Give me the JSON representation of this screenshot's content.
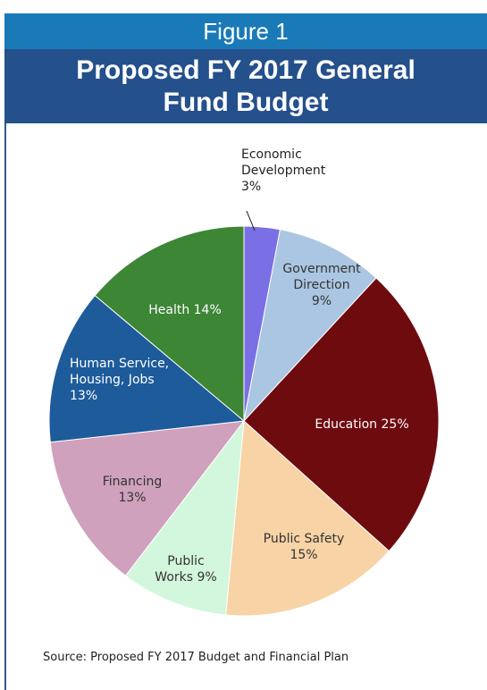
{
  "header": {
    "figure_label": "Figure 1",
    "title_line1": "Proposed FY 2017 General",
    "title_line2": "Fund Budget"
  },
  "chart_data": {
    "type": "pie",
    "title": "Proposed FY 2017 General Fund Budget",
    "slices": [
      {
        "label_lines": [
          "Economic",
          "Development",
          "3%"
        ],
        "value": 3,
        "color": "#7b6fe6"
      },
      {
        "label_lines": [
          "Government",
          "Direction",
          "9%"
        ],
        "value": 9,
        "color": "#abc6e2"
      },
      {
        "label_lines": [
          "Education 25%"
        ],
        "value": 25,
        "color": "#6e0b0f"
      },
      {
        "label_lines": [
          "Public Safety",
          "15%"
        ],
        "value": 15,
        "color": "#f7d3a6"
      },
      {
        "label_lines": [
          "Public",
          "Works 9%"
        ],
        "value": 9,
        "color": "#d2f7dc"
      },
      {
        "label_lines": [
          "Financing",
          "13%"
        ],
        "value": 13,
        "color": "#cfa1bc"
      },
      {
        "label_lines": [
          "Human Service,",
          "Housing, Jobs",
          "13%"
        ],
        "value": 13,
        "color": "#1d5b9b"
      },
      {
        "label_lines": [
          "Health 14%"
        ],
        "value": 14,
        "color": "#3d8636"
      }
    ]
  },
  "footer": {
    "source": "Source: Proposed FY 2017 Budget and Financial Plan"
  }
}
